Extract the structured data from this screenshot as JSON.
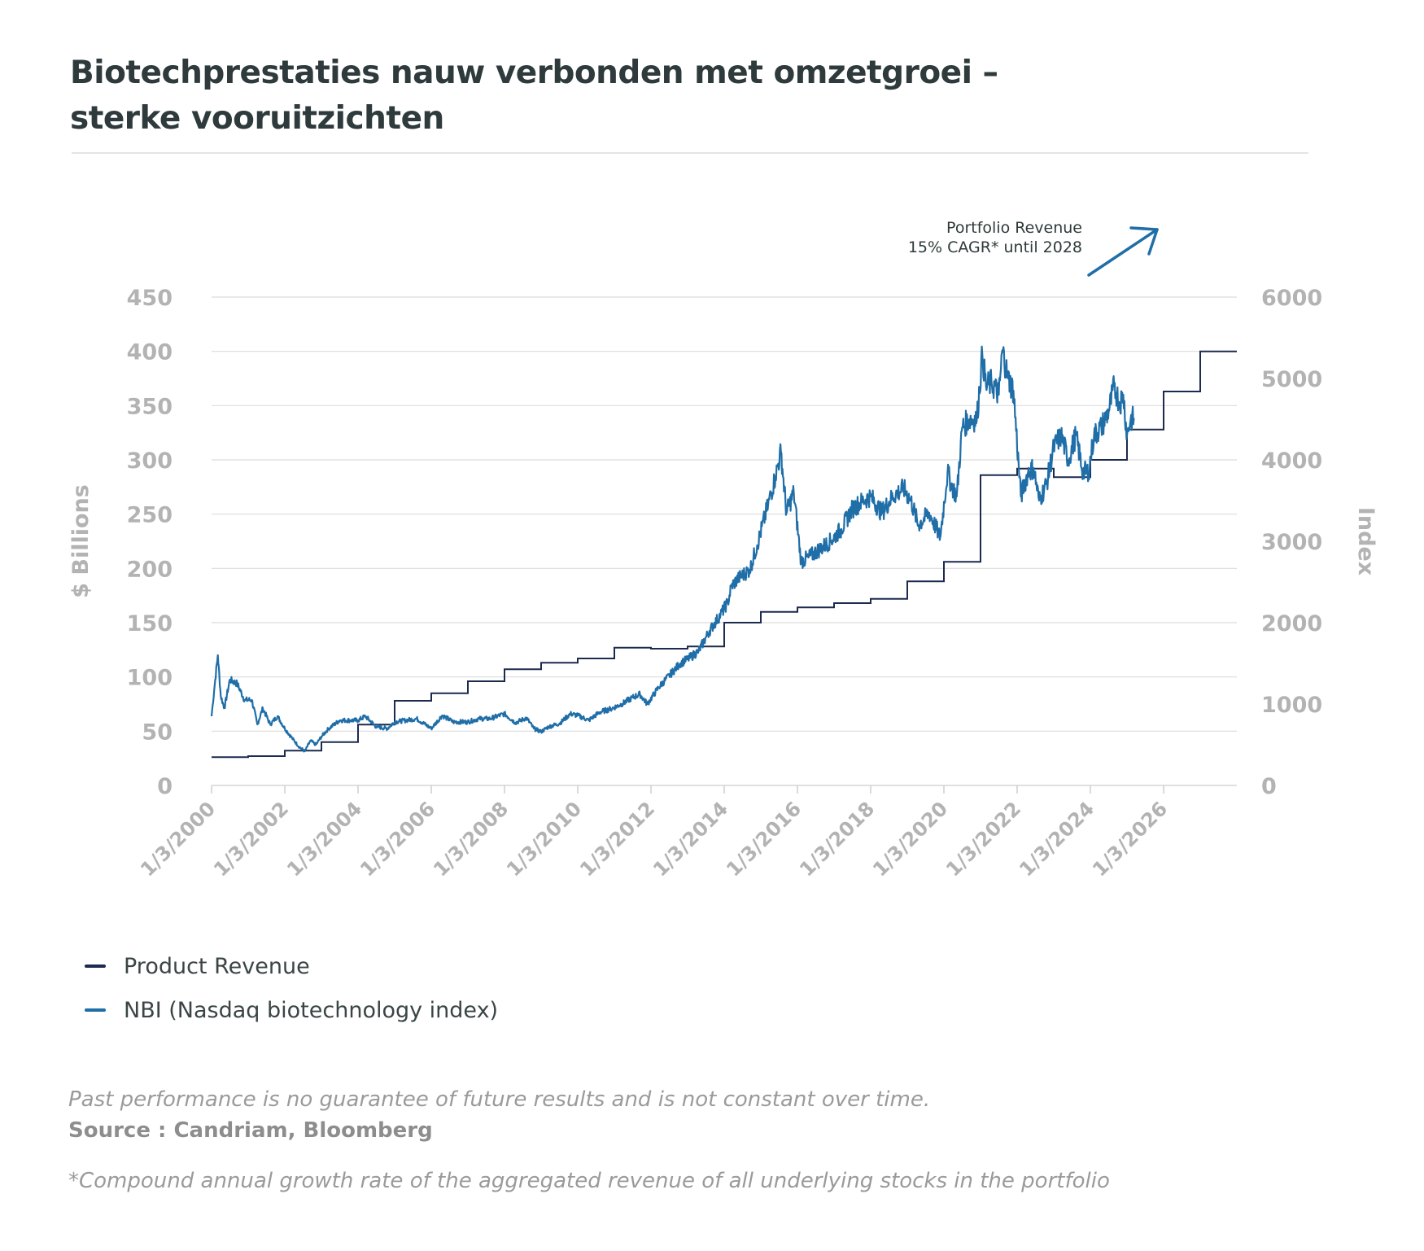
{
  "title_lines": [
    "Biotechprestaties nauw verbonden met omzetgroei –",
    "sterke vooruitzichten"
  ],
  "annotation": {
    "lines": [
      "Portfolio Revenue",
      "15% CAGR* until 2028"
    ],
    "arrow_color": "#1f6ea8"
  },
  "colors": {
    "revenue": "#1b2a4e",
    "nbi": "#1f6ea8",
    "grid": "#dcdcdc",
    "axis_text": "#b3b3b3"
  },
  "legend": [
    {
      "label": "Product Revenue",
      "color": "#1b2a4e"
    },
    {
      "label": "NBI (Nasdaq biotechnology index)",
      "color": "#1f6ea8"
    }
  ],
  "footnotes": {
    "disclaimer": "Past performance is no guarantee of future results and is not constant over time.",
    "source": "Source : Candriam, Bloomberg",
    "cagr_note": "*Compound annual growth rate of the aggregated revenue of all underlying stocks in the portfolio"
  },
  "chart_data": {
    "type": "line",
    "xlabel": "",
    "ylabel": "$ Billions",
    "y2label": "Index",
    "xlim": [
      2000,
      2028
    ],
    "ylim": [
      0,
      450
    ],
    "y2lim": [
      0,
      6000
    ],
    "y_ticks": [
      "0",
      "50",
      "100",
      "150",
      "200",
      "250",
      "300",
      "350",
      "400",
      "450"
    ],
    "y2_ticks": [
      "0",
      "1000",
      "2000",
      "3000",
      "4000",
      "5000",
      "6000"
    ],
    "x_ticks": [
      {
        "x": 2000,
        "label": "1/3/2000"
      },
      {
        "x": 2002,
        "label": "1/3/2002"
      },
      {
        "x": 2004,
        "label": "1/3/2004"
      },
      {
        "x": 2006,
        "label": "1/3/2006"
      },
      {
        "x": 2008,
        "label": "1/3/2008"
      },
      {
        "x": 2010,
        "label": "1/3/2010"
      },
      {
        "x": 2012,
        "label": "1/3/2012"
      },
      {
        "x": 2014,
        "label": "1/3/2014"
      },
      {
        "x": 2016,
        "label": "1/3/2016"
      },
      {
        "x": 2018,
        "label": "1/3/2018"
      },
      {
        "x": 2020,
        "label": "1/3/2020"
      },
      {
        "x": 2022,
        "label": "1/3/2022"
      },
      {
        "x": 2024,
        "label": "1/3/2024"
      },
      {
        "x": 2026,
        "label": "1/3/2026"
      }
    ],
    "grid": true,
    "legend_position": "bottom-left",
    "series": [
      {
        "name": "Product Revenue",
        "axis": "left",
        "step": true,
        "x": [
          2000,
          2001,
          2002,
          2003,
          2004,
          2005,
          2006,
          2007,
          2008,
          2009,
          2010,
          2011,
          2012,
          2013,
          2014,
          2015,
          2016,
          2017,
          2018,
          2019,
          2020,
          2021,
          2022,
          2023,
          2024,
          2025,
          2026,
          2027,
          2028
        ],
        "values": [
          26,
          27,
          32,
          40,
          56,
          78,
          85,
          96,
          107,
          113,
          117,
          127,
          126,
          128,
          150,
          160,
          164,
          168,
          172,
          188,
          206,
          286,
          292,
          284,
          300,
          328,
          363,
          400,
          400
        ]
      },
      {
        "name": "NBI (Nasdaq biotechnology index)",
        "axis": "right",
        "x": [
          2000.0,
          2000.1,
          2000.17,
          2000.25,
          2000.35,
          2000.5,
          2000.7,
          2000.9,
          2001.1,
          2001.25,
          2001.4,
          2001.6,
          2001.8,
          2002.0,
          2002.2,
          2002.4,
          2002.55,
          2002.7,
          2002.85,
          2003.0,
          2003.2,
          2003.5,
          2003.8,
          2004.0,
          2004.2,
          2004.5,
          2004.8,
          2005.0,
          2005.3,
          2005.6,
          2006.0,
          2006.3,
          2006.6,
          2007.0,
          2007.3,
          2007.6,
          2008.0,
          2008.3,
          2008.6,
          2008.8,
          2009.0,
          2009.2,
          2009.5,
          2009.8,
          2010.0,
          2010.3,
          2010.6,
          2010.9,
          2011.2,
          2011.5,
          2011.7,
          2011.9,
          2012.2,
          2012.5,
          2012.8,
          2013.0,
          2013.3,
          2013.6,
          2013.9,
          2014.1,
          2014.2,
          2014.4,
          2014.7,
          2014.9,
          2015.2,
          2015.4,
          2015.55,
          2015.7,
          2015.9,
          2016.1,
          2016.3,
          2016.6,
          2016.9,
          2017.2,
          2017.5,
          2017.8,
          2018.0,
          2018.3,
          2018.6,
          2018.9,
          2019.1,
          2019.3,
          2019.6,
          2019.9,
          2020.1,
          2020.2,
          2020.35,
          2020.5,
          2020.7,
          2020.9,
          2021.05,
          2021.15,
          2021.3,
          2021.5,
          2021.6,
          2021.75,
          2021.9,
          2022.1,
          2022.3,
          2022.45,
          2022.6,
          2022.8,
          2023.0,
          2023.2,
          2023.4,
          2023.6,
          2023.8,
          2023.95,
          2024.1,
          2024.3,
          2024.5,
          2024.65,
          2024.8,
          2024.9,
          2025.0,
          2025.1,
          2025.2
        ],
        "values": [
          850,
          1300,
          1600,
          1100,
          950,
          1300,
          1250,
          1050,
          1050,
          750,
          950,
          750,
          850,
          700,
          580,
          470,
          420,
          550,
          500,
          600,
          700,
          800,
          800,
          800,
          850,
          720,
          700,
          780,
          800,
          820,
          700,
          860,
          780,
          780,
          820,
          820,
          880,
          770,
          830,
          700,
          660,
          720,
          760,
          880,
          860,
          800,
          900,
          940,
          1000,
          1080,
          1120,
          1000,
          1200,
          1350,
          1500,
          1550,
          1650,
          1900,
          2100,
          2250,
          2450,
          2550,
          2650,
          2950,
          3450,
          3800,
          4100,
          3350,
          3600,
          2750,
          2800,
          2900,
          3000,
          3150,
          3400,
          3500,
          3550,
          3350,
          3550,
          3650,
          3500,
          3200,
          3350,
          3050,
          3850,
          3700,
          3550,
          4400,
          4500,
          4500,
          5300,
          4900,
          4950,
          4800,
          5350,
          5000,
          4850,
          3550,
          3850,
          3900,
          3500,
          3700,
          4150,
          4300,
          4000,
          4300,
          3850,
          3850,
          4300,
          4400,
          4600,
          4900,
          4700,
          4800,
          4300,
          4500,
          4500
        ]
      }
    ]
  }
}
